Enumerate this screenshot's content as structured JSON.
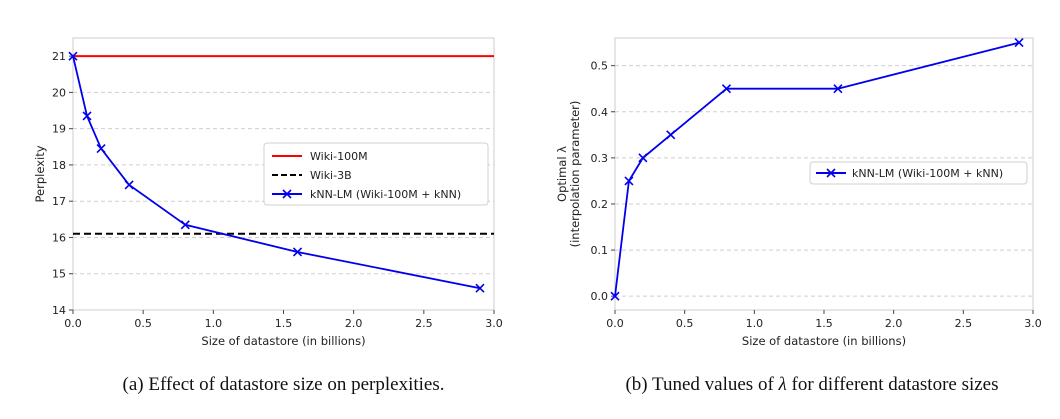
{
  "chart_data": [
    {
      "type": "line",
      "caption": "(a) Effect of datastore size on perplexities.",
      "xlabel": "Size of datastore (in billions)",
      "ylabel": "Perplexity",
      "xlim": [
        0,
        3.0
      ],
      "ylim": [
        14,
        21.5
      ],
      "xticks": [
        "0.0",
        "0.5",
        "1.0",
        "1.5",
        "2.0",
        "2.5",
        "3.0"
      ],
      "yticks": [
        "14",
        "15",
        "16",
        "17",
        "18",
        "19",
        "20",
        "21"
      ],
      "grid": "horizontal-dashed",
      "legend_position": "center-right",
      "series": [
        {
          "name": "Wiki-100M",
          "style": "solid",
          "color": "#ff0000",
          "marker": "none",
          "x": [
            0,
            3.0
          ],
          "y": [
            21.0,
            21.0
          ]
        },
        {
          "name": "Wiki-3B",
          "style": "dashed",
          "color": "#000000",
          "marker": "none",
          "x": [
            0,
            3.0
          ],
          "y": [
            16.1,
            16.1
          ]
        },
        {
          "name": "kNN-LM (Wiki-100M + kNN)",
          "style": "solid",
          "color": "#0000ee",
          "marker": "x",
          "x": [
            0.0,
            0.1,
            0.2,
            0.4,
            0.8,
            1.6,
            2.9
          ],
          "y": [
            21.0,
            19.35,
            18.45,
            17.45,
            16.35,
            15.6,
            14.6
          ]
        }
      ]
    },
    {
      "type": "line",
      "caption": "(b) Tuned values of λ for different datastore sizes",
      "caption_parts": [
        "(b) Tuned values of ",
        "λ",
        " for different datastore sizes"
      ],
      "xlabel": "Size of datastore (in billions)",
      "ylabel_lines": [
        "Optimal λ",
        "(interpolation parameter)"
      ],
      "xlim": [
        0,
        3.0
      ],
      "ylim": [
        -0.03,
        0.56
      ],
      "xticks": [
        "0.0",
        "0.5",
        "1.0",
        "1.5",
        "2.0",
        "2.5",
        "3.0"
      ],
      "yticks": [
        "0.0",
        "0.1",
        "0.2",
        "0.3",
        "0.4",
        "0.5"
      ],
      "grid": "horizontal-dashed",
      "legend_position": "center-right",
      "series": [
        {
          "name": "kNN-LM (Wiki-100M + kNN)",
          "style": "solid",
          "color": "#0000ee",
          "marker": "x",
          "x": [
            0.0,
            0.1,
            0.2,
            0.4,
            0.8,
            1.6,
            2.9
          ],
          "y": [
            0.0,
            0.25,
            0.3,
            0.35,
            0.45,
            0.45,
            0.55
          ]
        }
      ]
    }
  ]
}
